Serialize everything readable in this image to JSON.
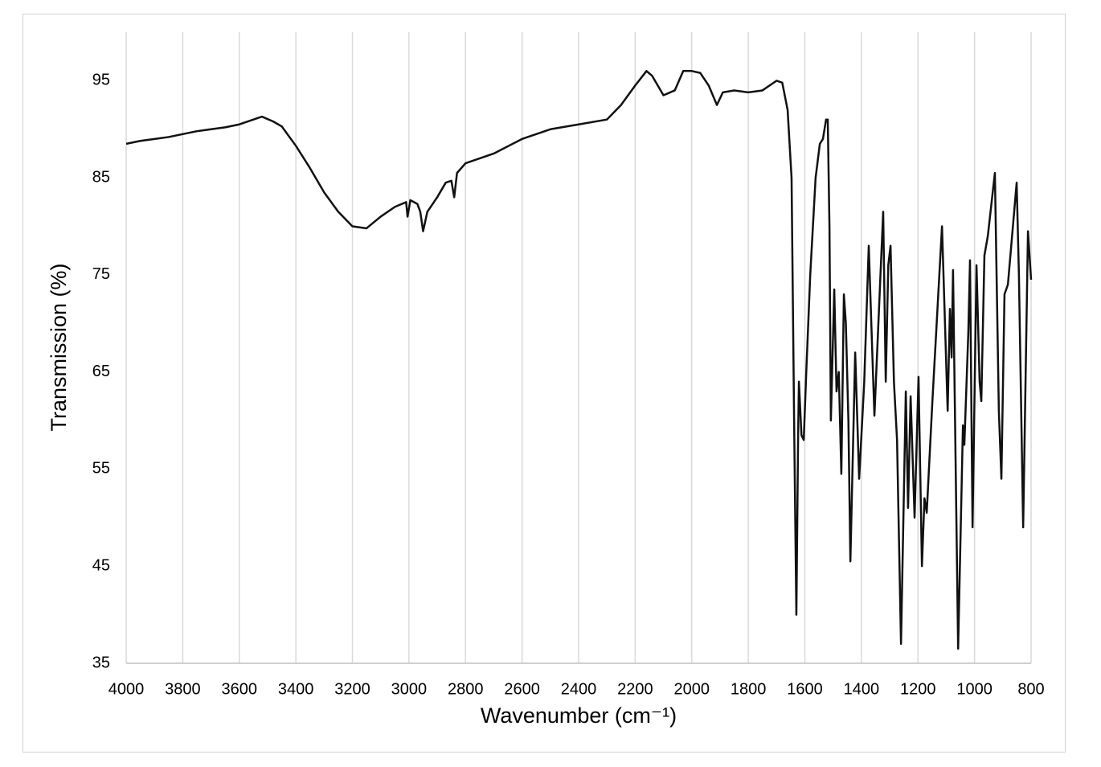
{
  "chart_data": {
    "type": "line",
    "xlabel": "Wavenumber (cm⁻¹)",
    "ylabel": "Transmission (%)",
    "color": "#111111",
    "grid": "x",
    "xlim": [
      4000,
      800
    ],
    "ylim": [
      35,
      100
    ],
    "xticks": [
      4000,
      3800,
      3600,
      3400,
      3200,
      3000,
      2800,
      2600,
      2400,
      2200,
      2000,
      1800,
      1600,
      1400,
      1200,
      1000,
      800
    ],
    "yticks": [
      35,
      45,
      55,
      65,
      75,
      85,
      95
    ],
    "x": [
      4000,
      3950,
      3900,
      3850,
      3800,
      3750,
      3700,
      3650,
      3600,
      3550,
      3520,
      3480,
      3450,
      3400,
      3350,
      3300,
      3250,
      3200,
      3150,
      3100,
      3050,
      3010,
      3005,
      2995,
      2970,
      2960,
      2950,
      2935,
      2900,
      2870,
      2850,
      2840,
      2830,
      2800,
      2700,
      2600,
      2500,
      2400,
      2300,
      2250,
      2200,
      2160,
      2140,
      2100,
      2060,
      2030,
      2000,
      1970,
      1940,
      1911,
      1890,
      1850,
      1800,
      1750,
      1700,
      1680,
      1661,
      1647,
      1638,
      1630,
      1624,
      1621,
      1612,
      1604,
      1595,
      1581,
      1562,
      1547,
      1536,
      1525,
      1519,
      1513,
      1508,
      1496,
      1488,
      1480,
      1471,
      1462,
      1455,
      1446,
      1439,
      1422,
      1408,
      1390,
      1374,
      1365,
      1354,
      1340,
      1323,
      1314,
      1305,
      1297,
      1285,
      1274,
      1260,
      1243,
      1235,
      1226,
      1212,
      1198,
      1186,
      1177,
      1169,
      1149,
      1115,
      1095,
      1087,
      1081,
      1076,
      1058,
      1041,
      1036,
      1022,
      1016,
      1007,
      993,
      982,
      976,
      965,
      953,
      928,
      914,
      905,
      894,
      882,
      851,
      843,
      828,
      811,
      800
    ],
    "values": [
      88.5,
      88.8,
      89,
      89.2,
      89.5,
      89.8,
      90,
      90.2,
      90.5,
      91,
      91.3,
      90.8,
      90.3,
      88.3,
      86,
      83.5,
      81.5,
      80,
      79.8,
      81,
      82,
      82.5,
      81,
      82.7,
      82.3,
      81.5,
      79.5,
      81.5,
      83,
      84.5,
      84.7,
      83,
      85.5,
      86.5,
      87.5,
      89,
      90,
      90.5,
      91,
      92.5,
      94.5,
      96,
      95.5,
      93.5,
      94,
      96,
      96,
      95.8,
      94.5,
      92.5,
      93.8,
      94,
      93.8,
      94,
      95,
      94.8,
      92,
      85,
      60,
      40,
      58,
      64,
      58.5,
      58,
      65,
      75,
      85,
      88.5,
      89,
      91,
      91,
      80,
      60,
      73.5,
      63,
      65,
      54.5,
      73,
      70,
      60,
      45.5,
      67,
      54,
      64,
      78,
      70,
      60.5,
      70,
      81.5,
      64,
      76,
      78,
      64,
      58,
      37,
      63,
      51,
      62.5,
      50,
      64.5,
      45,
      52,
      50.5,
      62,
      80,
      61,
      71.5,
      66.5,
      75.5,
      36.5,
      59.5,
      57.5,
      69,
      76.5,
      49,
      76,
      64,
      62,
      77,
      79,
      85.5,
      61,
      54,
      73,
      74,
      84.5,
      75,
      49,
      79.5,
      74.5
    ]
  }
}
